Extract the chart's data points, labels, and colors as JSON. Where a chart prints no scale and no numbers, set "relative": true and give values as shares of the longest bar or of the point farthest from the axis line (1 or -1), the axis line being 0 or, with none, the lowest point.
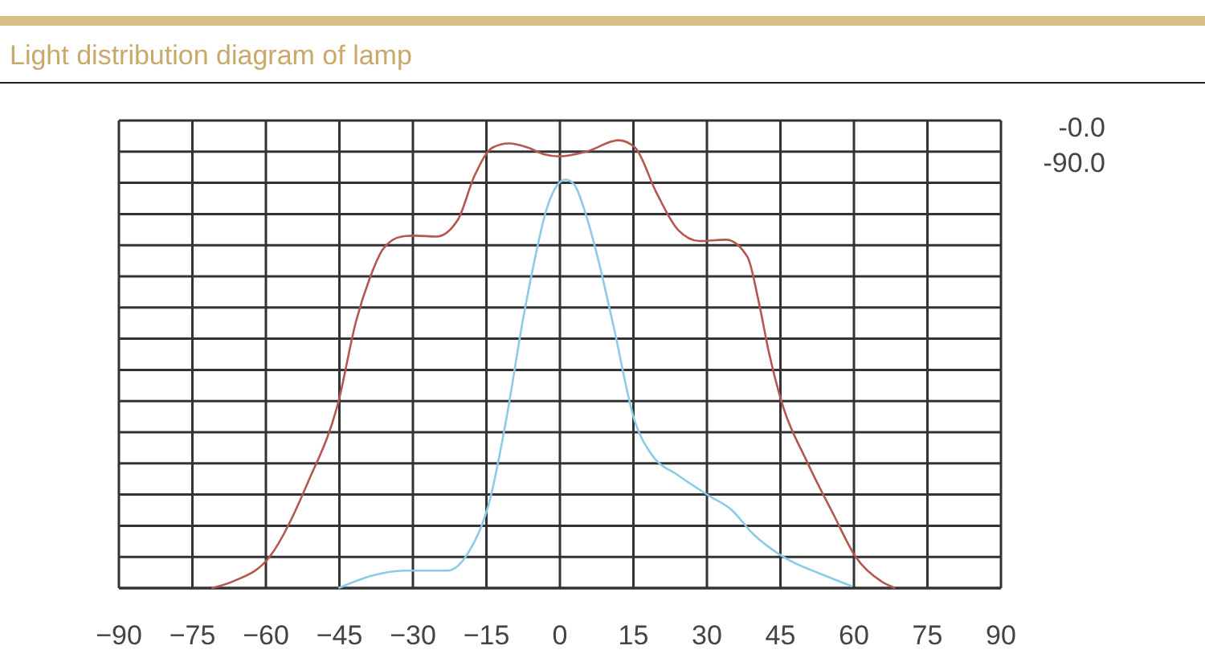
{
  "chart_data": {
    "type": "line",
    "title": "Light distribution diagram of lamp",
    "relative": true,
    "xlim": [
      -90,
      90
    ],
    "xticks": [
      -90,
      -75,
      -60,
      -45,
      -30,
      -15,
      0,
      15,
      30,
      45,
      60,
      75,
      90
    ],
    "grid": true,
    "marker": "none",
    "line_style": "solid",
    "annotations": [
      "-0.0",
      "-90.0"
    ],
    "series": [
      {
        "color": "#b5574f",
        "x": [
          -71.1,
          -66.7,
          -59.3,
          -51.4,
          -45.2,
          -41.6,
          -38.8,
          -36.1,
          -32.3,
          -29.5,
          -25.2,
          -20.8,
          -17.5,
          -13.7,
          -10.4,
          -6.6,
          -3.3,
          0,
          5.5,
          12.0,
          15.3,
          19.7,
          24.1,
          28.5,
          33.9,
          38.3,
          40.5,
          42.7,
          45.4,
          50.3,
          55.8,
          60.4,
          65.6,
          68.4
        ],
        "values": [
          0,
          0.015,
          0.069,
          0.237,
          0.416,
          0.596,
          0.692,
          0.757,
          0.785,
          0.787,
          0.785,
          0.823,
          0.919,
          0.984,
          0.993,
          0.984,
          0.969,
          0.964,
          0.975,
          1.0,
          0.984,
          0.883,
          0.8,
          0.775,
          0.778,
          0.739,
          0.643,
          0.524,
          0.41,
          0.285,
          0.165,
          0.069,
          0.015,
          0
        ]
      },
      {
        "color": "#8ccbe8",
        "x": [
          -45.2,
          -38.3,
          -31.7,
          -23.0,
          -18.6,
          -14.2,
          -10.9,
          -7.6,
          -5.5,
          -2.7,
          1.1,
          2.7,
          5.5,
          7.6,
          10.9,
          15.3,
          18.6,
          24.1,
          30.6,
          35.0,
          39.4,
          46.0,
          53.6,
          59.6
        ],
        "values": [
          0,
          0.028,
          0.039,
          0.039,
          0.081,
          0.201,
          0.38,
          0.596,
          0.715,
          0.847,
          0.912,
          0.904,
          0.827,
          0.743,
          0.587,
          0.372,
          0.3,
          0.252,
          0.205,
          0.175,
          0.121,
          0.067,
          0.03,
          0.004
        ]
      }
    ]
  }
}
